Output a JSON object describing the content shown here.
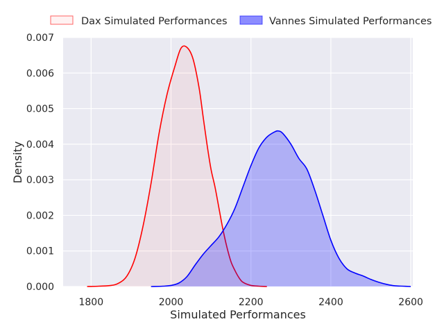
{
  "chart_data": {
    "type": "area",
    "xlabel": "Simulated Performances",
    "ylabel": "Density",
    "xlim": [
      1730,
      2605
    ],
    "ylim": [
      0,
      0.007
    ],
    "x_ticks": [
      1800,
      2000,
      2200,
      2400,
      2600
    ],
    "y_ticks": [
      0.0,
      0.001,
      0.002,
      0.003,
      0.004,
      0.005,
      0.006,
      0.007
    ],
    "x_tick_labels": [
      "1800",
      "2000",
      "2200",
      "2400",
      "2600"
    ],
    "y_tick_labels": [
      "0.000",
      "0.001",
      "0.002",
      "0.003",
      "0.004",
      "0.005",
      "0.006",
      "0.007"
    ],
    "grid": true,
    "legend_placement": "top-center, outside plot",
    "colors": {
      "background": "#eaeaf2",
      "grid": "#ffffff",
      "dax": "#ff0000",
      "vannes": "#0000ff"
    },
    "series": [
      {
        "name": "Dax Simulated Performances",
        "color": "#ff0000",
        "fill_opacity": 0.05,
        "x": [
          1790,
          1820,
          1850,
          1870,
          1890,
          1910,
          1930,
          1950,
          1970,
          1990,
          2010,
          2025,
          2040,
          2055,
          2070,
          2080,
          2090,
          2100,
          2110,
          2120,
          2130,
          2140,
          2150,
          2160,
          2170,
          2180,
          2200,
          2220,
          2240
        ],
        "y": [
          0,
          1e-05,
          3e-05,
          0.0001,
          0.0003,
          0.0008,
          0.0017,
          0.0029,
          0.0043,
          0.0054,
          0.0062,
          0.0067,
          0.00672,
          0.0064,
          0.0056,
          0.0048,
          0.004,
          0.0033,
          0.0028,
          0.0022,
          0.0016,
          0.0011,
          0.0007,
          0.00045,
          0.00025,
          0.00012,
          3e-05,
          1e-05,
          0
        ]
      },
      {
        "name": "Vannes Simulated Performances",
        "color": "#0000ff",
        "fill_opacity": 0.25,
        "x": [
          1950,
          1980,
          2000,
          2020,
          2040,
          2060,
          2080,
          2100,
          2120,
          2140,
          2160,
          2180,
          2200,
          2220,
          2240,
          2260,
          2270,
          2280,
          2300,
          2320,
          2340,
          2360,
          2380,
          2400,
          2420,
          2440,
          2460,
          2480,
          2500,
          2520,
          2540,
          2560,
          2580,
          2600
        ],
        "y": [
          0,
          1e-05,
          3e-05,
          0.0001,
          0.00028,
          0.0006,
          0.0009,
          0.00115,
          0.0014,
          0.00175,
          0.0022,
          0.0028,
          0.0034,
          0.0039,
          0.0042,
          0.00435,
          0.00437,
          0.0043,
          0.004,
          0.0036,
          0.0033,
          0.0027,
          0.002,
          0.0013,
          0.0008,
          0.0005,
          0.00038,
          0.0003,
          0.0002,
          0.00012,
          6e-05,
          2e-05,
          1e-05,
          0
        ]
      }
    ]
  }
}
